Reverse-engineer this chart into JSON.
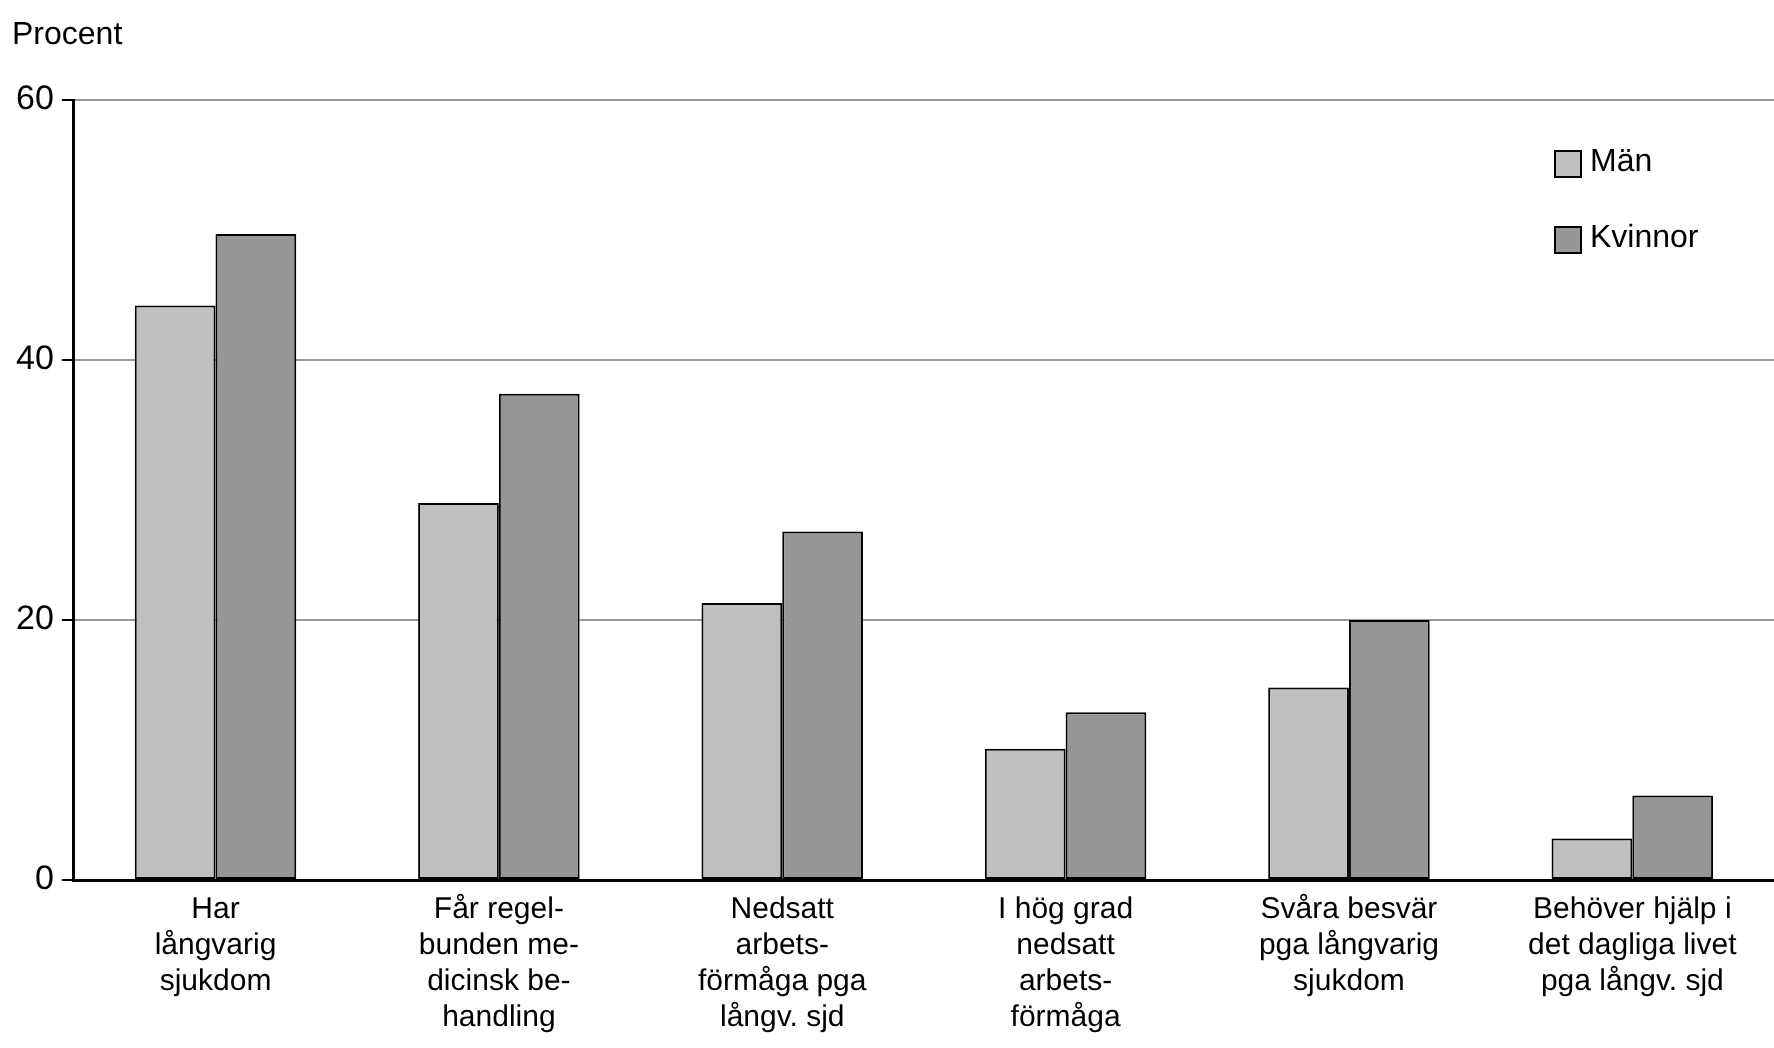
{
  "chart_data": {
    "type": "bar",
    "ylabel": "Procent",
    "categories": [
      "Har\nlångvarig\nsjukdom",
      "Får regel-\nbunden me-\ndicinsk be-\nhandling",
      "Nedsatt\narbets-\nförmåga pga\nlångv. sjd",
      "I hög grad\nnedsatt\narbets-\nförmåga",
      "Svåra besvär\npga långvarig\nsjukdom",
      "Behöver hjälp i\ndet dagliga livet\npga långv. sjd"
    ],
    "series": [
      {
        "name": "Män",
        "color": "#c0c0c0",
        "values": [
          44.2,
          29.0,
          21.3,
          10.1,
          14.8,
          3.2
        ]
      },
      {
        "name": "Kvinnor",
        "color": "#969696",
        "values": [
          49.7,
          37.4,
          26.8,
          12.9,
          20.0,
          6.5
        ]
      }
    ],
    "ylim": [
      0,
      60
    ],
    "yticks": [
      0,
      20,
      40,
      60
    ],
    "grid": "y",
    "legend": "top right"
  }
}
